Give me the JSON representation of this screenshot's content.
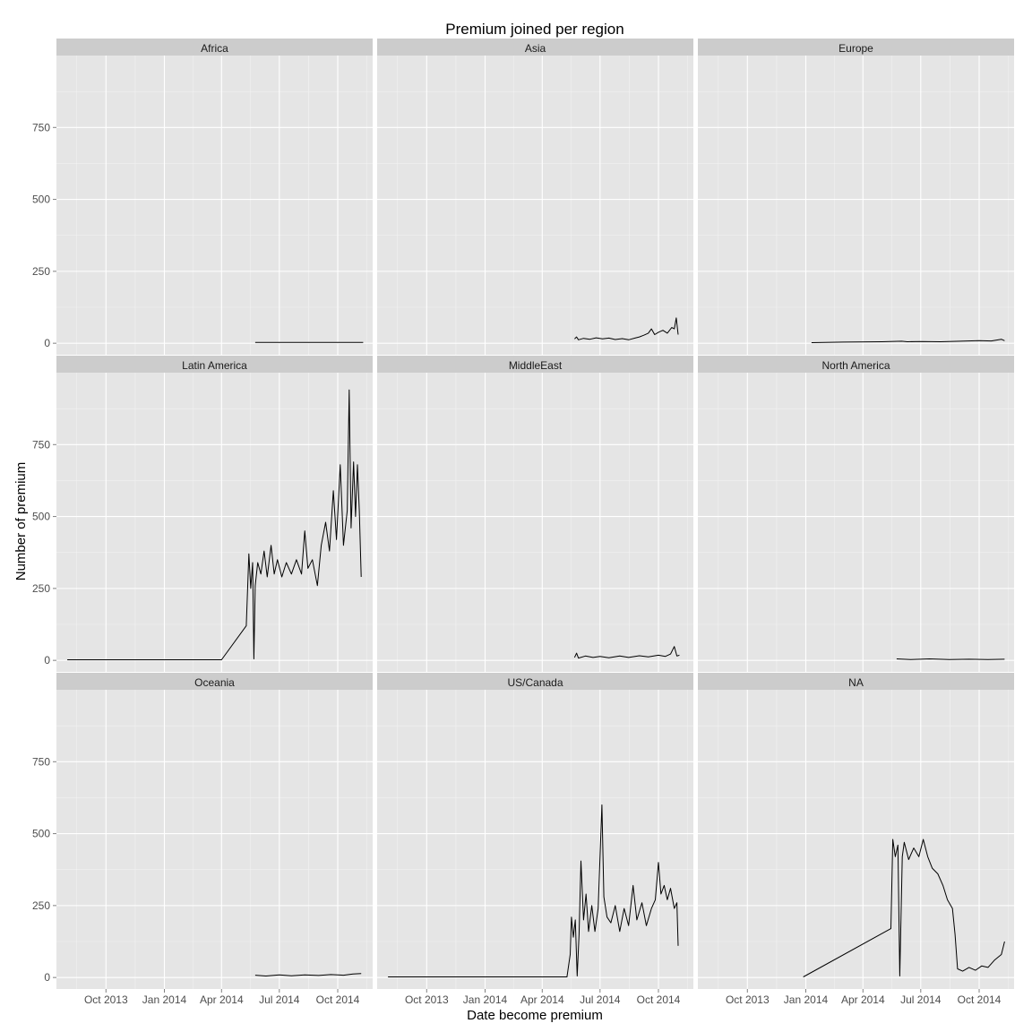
{
  "chart_data": {
    "type": "line",
    "title": "Premium joined per region",
    "xlabel": "Date become premium",
    "ylabel": "Number of premium",
    "x_scale": "date",
    "xlim": [
      "2013-07-15",
      "2014-11-25"
    ],
    "ylim": [
      -40,
      1000
    ],
    "x_ticks": [
      {
        "date": "2013-10-01",
        "label": "Oct 2013"
      },
      {
        "date": "2014-01-01",
        "label": "Jan 2014"
      },
      {
        "date": "2014-04-01",
        "label": "Apr 2014"
      },
      {
        "date": "2014-07-01",
        "label": "Jul 2014"
      },
      {
        "date": "2014-10-01",
        "label": "Oct 2014"
      }
    ],
    "y_ticks": [
      0,
      250,
      500,
      750
    ],
    "grid": true,
    "legend": "none",
    "line_color": "#000000",
    "panel_color": "#e5e5e5",
    "strip_color": "#cccccc",
    "facets": [
      {
        "name": "Africa",
        "series": [
          {
            "x": "2014-05-24",
            "y": 3
          },
          {
            "x": "2014-11-10",
            "y": 3
          }
        ]
      },
      {
        "name": "Asia",
        "series": [
          {
            "x": "2014-05-22",
            "y": 15
          },
          {
            "x": "2014-05-25",
            "y": 22
          },
          {
            "x": "2014-05-28",
            "y": 12
          },
          {
            "x": "2014-06-05",
            "y": 17
          },
          {
            "x": "2014-06-15",
            "y": 14
          },
          {
            "x": "2014-06-25",
            "y": 19
          },
          {
            "x": "2014-07-05",
            "y": 15
          },
          {
            "x": "2014-07-15",
            "y": 18
          },
          {
            "x": "2014-07-25",
            "y": 13
          },
          {
            "x": "2014-08-05",
            "y": 16
          },
          {
            "x": "2014-08-15",
            "y": 12
          },
          {
            "x": "2014-08-25",
            "y": 18
          },
          {
            "x": "2014-09-01",
            "y": 22
          },
          {
            "x": "2014-09-08",
            "y": 28
          },
          {
            "x": "2014-09-15",
            "y": 35
          },
          {
            "x": "2014-09-20",
            "y": 50
          },
          {
            "x": "2014-09-25",
            "y": 30
          },
          {
            "x": "2014-10-01",
            "y": 38
          },
          {
            "x": "2014-10-08",
            "y": 45
          },
          {
            "x": "2014-10-15",
            "y": 35
          },
          {
            "x": "2014-10-22",
            "y": 55
          },
          {
            "x": "2014-10-26",
            "y": 50
          },
          {
            "x": "2014-10-29",
            "y": 88
          },
          {
            "x": "2014-11-01",
            "y": 30
          }
        ]
      },
      {
        "name": "Europe",
        "series": [
          {
            "x": "2014-01-10",
            "y": 2
          },
          {
            "x": "2014-03-01",
            "y": 4
          },
          {
            "x": "2014-05-01",
            "y": 5
          },
          {
            "x": "2014-06-01",
            "y": 7
          },
          {
            "x": "2014-06-10",
            "y": 5
          },
          {
            "x": "2014-07-01",
            "y": 6
          },
          {
            "x": "2014-08-01",
            "y": 5
          },
          {
            "x": "2014-09-01",
            "y": 7
          },
          {
            "x": "2014-10-01",
            "y": 9
          },
          {
            "x": "2014-10-20",
            "y": 8
          },
          {
            "x": "2014-11-05",
            "y": 14
          },
          {
            "x": "2014-11-10",
            "y": 9
          }
        ]
      },
      {
        "name": "Latin America",
        "series": [
          {
            "x": "2013-08-01",
            "y": 2
          },
          {
            "x": "2014-04-01",
            "y": 2
          },
          {
            "x": "2014-05-10",
            "y": 120
          },
          {
            "x": "2014-05-14",
            "y": 370
          },
          {
            "x": "2014-05-17",
            "y": 250
          },
          {
            "x": "2014-05-20",
            "y": 340
          },
          {
            "x": "2014-05-22",
            "y": 5
          },
          {
            "x": "2014-05-24",
            "y": 260
          },
          {
            "x": "2014-05-28",
            "y": 340
          },
          {
            "x": "2014-06-02",
            "y": 300
          },
          {
            "x": "2014-06-07",
            "y": 380
          },
          {
            "x": "2014-06-12",
            "y": 290
          },
          {
            "x": "2014-06-18",
            "y": 400
          },
          {
            "x": "2014-06-23",
            "y": 300
          },
          {
            "x": "2014-06-28",
            "y": 350
          },
          {
            "x": "2014-07-05",
            "y": 290
          },
          {
            "x": "2014-07-12",
            "y": 340
          },
          {
            "x": "2014-07-20",
            "y": 300
          },
          {
            "x": "2014-07-28",
            "y": 350
          },
          {
            "x": "2014-08-05",
            "y": 300
          },
          {
            "x": "2014-08-10",
            "y": 450
          },
          {
            "x": "2014-08-15",
            "y": 320
          },
          {
            "x": "2014-08-22",
            "y": 350
          },
          {
            "x": "2014-08-30",
            "y": 260
          },
          {
            "x": "2014-09-05",
            "y": 400
          },
          {
            "x": "2014-09-12",
            "y": 480
          },
          {
            "x": "2014-09-18",
            "y": 380
          },
          {
            "x": "2014-09-24",
            "y": 590
          },
          {
            "x": "2014-09-29",
            "y": 420
          },
          {
            "x": "2014-10-05",
            "y": 680
          },
          {
            "x": "2014-10-10",
            "y": 400
          },
          {
            "x": "2014-10-16",
            "y": 520
          },
          {
            "x": "2014-10-19",
            "y": 940
          },
          {
            "x": "2014-10-22",
            "y": 460
          },
          {
            "x": "2014-10-26",
            "y": 690
          },
          {
            "x": "2014-10-29",
            "y": 500
          },
          {
            "x": "2014-11-01",
            "y": 680
          },
          {
            "x": "2014-11-04",
            "y": 520
          },
          {
            "x": "2014-11-07",
            "y": 290
          }
        ]
      },
      {
        "name": "MiddleEast",
        "series": [
          {
            "x": "2014-05-22",
            "y": 10
          },
          {
            "x": "2014-05-25",
            "y": 25
          },
          {
            "x": "2014-05-28",
            "y": 8
          },
          {
            "x": "2014-06-08",
            "y": 15
          },
          {
            "x": "2014-06-20",
            "y": 10
          },
          {
            "x": "2014-07-01",
            "y": 14
          },
          {
            "x": "2014-07-15",
            "y": 9
          },
          {
            "x": "2014-08-01",
            "y": 15
          },
          {
            "x": "2014-08-15",
            "y": 10
          },
          {
            "x": "2014-09-01",
            "y": 16
          },
          {
            "x": "2014-09-15",
            "y": 12
          },
          {
            "x": "2014-10-01",
            "y": 18
          },
          {
            "x": "2014-10-12",
            "y": 14
          },
          {
            "x": "2014-10-20",
            "y": 22
          },
          {
            "x": "2014-10-26",
            "y": 48
          },
          {
            "x": "2014-10-30",
            "y": 15
          },
          {
            "x": "2014-11-03",
            "y": 18
          }
        ]
      },
      {
        "name": "North America",
        "series": [
          {
            "x": "2014-05-24",
            "y": 5
          },
          {
            "x": "2014-06-15",
            "y": 3
          },
          {
            "x": "2014-07-15",
            "y": 5
          },
          {
            "x": "2014-08-15",
            "y": 3
          },
          {
            "x": "2014-09-15",
            "y": 4
          },
          {
            "x": "2014-10-15",
            "y": 3
          },
          {
            "x": "2014-11-10",
            "y": 4
          }
        ]
      },
      {
        "name": "Oceania",
        "series": [
          {
            "x": "2014-05-24",
            "y": 8
          },
          {
            "x": "2014-06-10",
            "y": 5
          },
          {
            "x": "2014-07-01",
            "y": 9
          },
          {
            "x": "2014-07-20",
            "y": 6
          },
          {
            "x": "2014-08-10",
            "y": 9
          },
          {
            "x": "2014-09-01",
            "y": 7
          },
          {
            "x": "2014-09-20",
            "y": 10
          },
          {
            "x": "2014-10-10",
            "y": 8
          },
          {
            "x": "2014-10-25",
            "y": 12
          },
          {
            "x": "2014-11-07",
            "y": 14
          }
        ]
      },
      {
        "name": "US/Canada",
        "series": [
          {
            "x": "2013-08-01",
            "y": 2
          },
          {
            "x": "2014-05-10",
            "y": 2
          },
          {
            "x": "2014-05-15",
            "y": 80
          },
          {
            "x": "2014-05-17",
            "y": 210
          },
          {
            "x": "2014-05-20",
            "y": 140
          },
          {
            "x": "2014-05-23",
            "y": 200
          },
          {
            "x": "2014-05-26",
            "y": 5
          },
          {
            "x": "2014-05-29",
            "y": 150
          },
          {
            "x": "2014-06-01",
            "y": 405
          },
          {
            "x": "2014-06-05",
            "y": 200
          },
          {
            "x": "2014-06-09",
            "y": 290
          },
          {
            "x": "2014-06-13",
            "y": 160
          },
          {
            "x": "2014-06-18",
            "y": 250
          },
          {
            "x": "2014-06-23",
            "y": 160
          },
          {
            "x": "2014-06-28",
            "y": 240
          },
          {
            "x": "2014-07-04",
            "y": 600
          },
          {
            "x": "2014-07-07",
            "y": 280
          },
          {
            "x": "2014-07-12",
            "y": 210
          },
          {
            "x": "2014-07-18",
            "y": 190
          },
          {
            "x": "2014-07-25",
            "y": 250
          },
          {
            "x": "2014-08-01",
            "y": 160
          },
          {
            "x": "2014-08-08",
            "y": 240
          },
          {
            "x": "2014-08-15",
            "y": 180
          },
          {
            "x": "2014-08-22",
            "y": 320
          },
          {
            "x": "2014-08-28",
            "y": 200
          },
          {
            "x": "2014-09-05",
            "y": 260
          },
          {
            "x": "2014-09-12",
            "y": 180
          },
          {
            "x": "2014-09-20",
            "y": 240
          },
          {
            "x": "2014-09-26",
            "y": 270
          },
          {
            "x": "2014-10-01",
            "y": 400
          },
          {
            "x": "2014-10-05",
            "y": 290
          },
          {
            "x": "2014-10-10",
            "y": 320
          },
          {
            "x": "2014-10-15",
            "y": 270
          },
          {
            "x": "2014-10-20",
            "y": 310
          },
          {
            "x": "2014-10-26",
            "y": 240
          },
          {
            "x": "2014-10-30",
            "y": 260
          },
          {
            "x": "2014-11-01",
            "y": 110
          }
        ]
      },
      {
        "name": "NA",
        "series": [
          {
            "x": "2013-12-28",
            "y": 2
          },
          {
            "x": "2014-05-15",
            "y": 170
          },
          {
            "x": "2014-05-18",
            "y": 480
          },
          {
            "x": "2014-05-22",
            "y": 420
          },
          {
            "x": "2014-05-26",
            "y": 460
          },
          {
            "x": "2014-05-29",
            "y": 5
          },
          {
            "x": "2014-06-02",
            "y": 420
          },
          {
            "x": "2014-06-05",
            "y": 470
          },
          {
            "x": "2014-06-12",
            "y": 410
          },
          {
            "x": "2014-06-20",
            "y": 450
          },
          {
            "x": "2014-06-28",
            "y": 420
          },
          {
            "x": "2014-07-05",
            "y": 480
          },
          {
            "x": "2014-07-12",
            "y": 420
          },
          {
            "x": "2014-07-19",
            "y": 380
          },
          {
            "x": "2014-07-28",
            "y": 360
          },
          {
            "x": "2014-08-05",
            "y": 320
          },
          {
            "x": "2014-08-12",
            "y": 270
          },
          {
            "x": "2014-08-20",
            "y": 240
          },
          {
            "x": "2014-08-24",
            "y": 150
          },
          {
            "x": "2014-08-28",
            "y": 30
          },
          {
            "x": "2014-09-05",
            "y": 22
          },
          {
            "x": "2014-09-15",
            "y": 35
          },
          {
            "x": "2014-09-25",
            "y": 25
          },
          {
            "x": "2014-10-05",
            "y": 40
          },
          {
            "x": "2014-10-15",
            "y": 35
          },
          {
            "x": "2014-10-25",
            "y": 60
          },
          {
            "x": "2014-11-05",
            "y": 80
          },
          {
            "x": "2014-11-10",
            "y": 125
          }
        ]
      }
    ]
  }
}
